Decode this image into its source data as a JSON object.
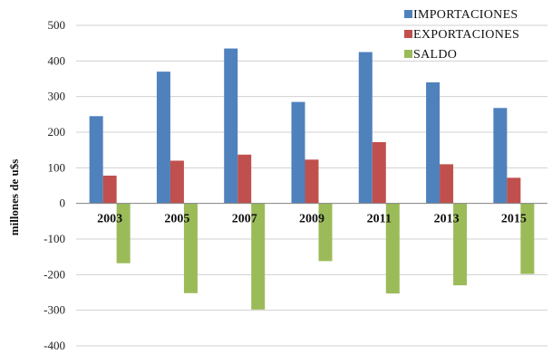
{
  "chart_data": {
    "type": "bar",
    "categories": [
      "2003",
      "2005",
      "2007",
      "2009",
      "2011",
      "2013",
      "2015"
    ],
    "series": [
      {
        "name": "IMPORTACIONES",
        "color": "#4f81bd",
        "values": [
          245,
          370,
          435,
          285,
          425,
          340,
          268
        ]
      },
      {
        "name": "EXPORTACIONES",
        "color": "#c0504d",
        "values": [
          78,
          120,
          137,
          123,
          172,
          110,
          72
        ]
      },
      {
        "name": "SALDO",
        "color": "#9bbb59",
        "values": [
          -168,
          -252,
          -298,
          -162,
          -253,
          -230,
          -198
        ]
      }
    ],
    "ylabel": "millones de u$s",
    "xlabel": "",
    "ylim": [
      -400,
      500
    ],
    "yticks": [
      500,
      400,
      300,
      200,
      100,
      0,
      -100,
      -200,
      -300,
      -400
    ],
    "grid": true,
    "legend_position": "top-right"
  }
}
